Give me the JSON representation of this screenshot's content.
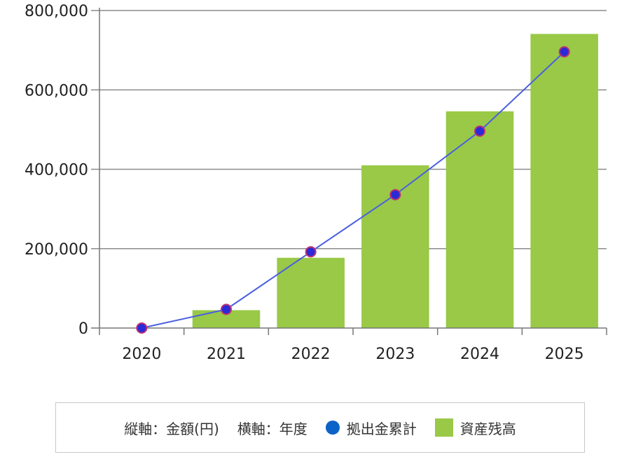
{
  "colors": {
    "bar": "#99c947",
    "line": "#4a5fe0",
    "point_fill": "#2a2ad8",
    "point_stroke": "#c03070",
    "legend_dot": "#0b63c8",
    "legend_square": "#99c947",
    "grid": "#8c8c8c"
  },
  "legend": {
    "vertical_axis": "縦軸：金額(円)",
    "horizontal_axis": "横軸：年度",
    "line_series": "拠出金累計",
    "bar_series": "資産残高"
  },
  "chart_data": {
    "type": "bar",
    "categories": [
      "2020",
      "2021",
      "2022",
      "2023",
      "2024",
      "2025"
    ],
    "series": [
      {
        "name": "資産残高",
        "type": "bar",
        "values": [
          0,
          45000,
          177000,
          410000,
          546000,
          741000
        ]
      },
      {
        "name": "拠出金累計",
        "type": "line",
        "values": [
          0,
          47000,
          192000,
          336000,
          496000,
          696000
        ]
      }
    ],
    "ylim": [
      0,
      800000
    ],
    "yticks": [
      0,
      200000,
      400000,
      600000,
      800000
    ],
    "ytick_labels": [
      "0",
      "200,000",
      "400,000",
      "600,000",
      "800,000"
    ],
    "grid": true,
    "legend_position": "bottom"
  }
}
